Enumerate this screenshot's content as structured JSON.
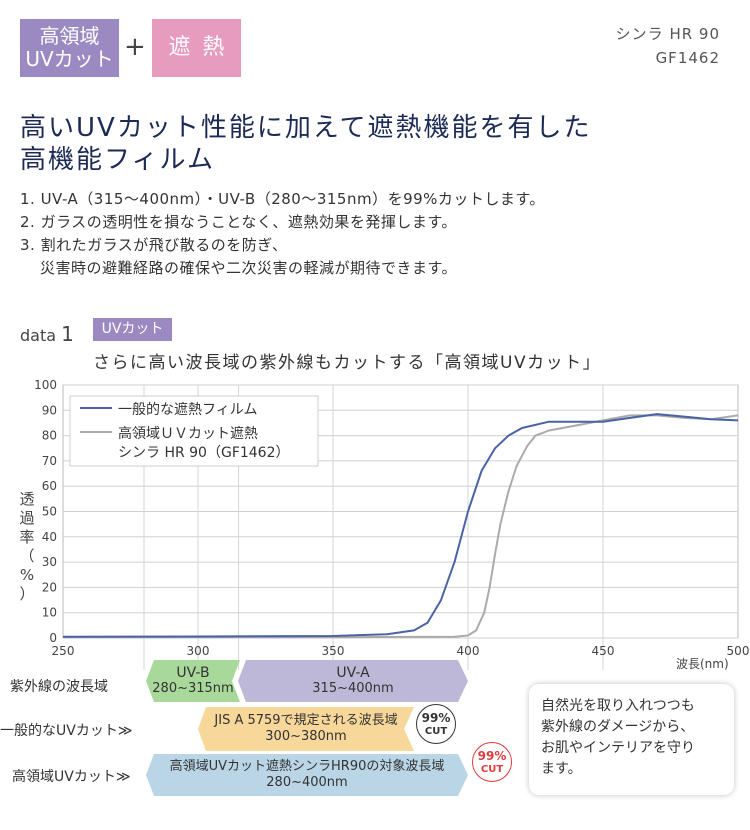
{
  "header": {
    "badge_uv_line1": "高領域",
    "badge_uv_line2": "UVカット",
    "plus": "+",
    "badge_heat": "遮熱",
    "product_name": "シンラ HR 90",
    "product_code": "GF1462"
  },
  "headline": {
    "line1": "高いUVカット性能に加えて遮熱機能を有した",
    "line2": "高機能フィルム"
  },
  "features": [
    {
      "text": "1. UV-A（315〜400nm）・UV-B（280〜315nm）を99%カットします。"
    },
    {
      "text": "2. ガラスの透明性を損なうことなく、遮熱効果を発揮します。"
    },
    {
      "text": "3. 割れたガラスが飛び散るのを防ぎ、",
      "cont": "災害時の避難経路の確保や二次災害の軽減が期待できます。"
    }
  ],
  "data_section": {
    "label": "data",
    "number": "1",
    "tag": "UVカット",
    "title": "さらに高い波長域の紫外線もカットする「高領域UVカット」"
  },
  "chart_data": {
    "type": "line",
    "title": "さらに高い波長域の紫外線もカットする「高領域UVカット」",
    "xlabel": "波長(nm)",
    "ylabel": "透過率（%）",
    "xlim": [
      250,
      500
    ],
    "ylim": [
      0,
      100
    ],
    "x_ticks": [
      250,
      300,
      350,
      400,
      450,
      500
    ],
    "y_ticks": [
      0,
      10,
      20,
      30,
      40,
      50,
      60,
      70,
      80,
      90,
      100
    ],
    "grid": true,
    "legend_position": "top-left",
    "series": [
      {
        "name": "一般的な遮熱フィルム",
        "color": "#4a63a6",
        "points": [
          [
            250,
            0.5
          ],
          [
            300,
            0.6
          ],
          [
            350,
            0.8
          ],
          [
            370,
            1.5
          ],
          [
            380,
            3
          ],
          [
            385,
            6
          ],
          [
            390,
            15
          ],
          [
            395,
            30
          ],
          [
            400,
            50
          ],
          [
            405,
            66
          ],
          [
            410,
            75
          ],
          [
            415,
            80
          ],
          [
            420,
            83
          ],
          [
            430,
            85.5
          ],
          [
            440,
            85.5
          ],
          [
            450,
            85.5
          ],
          [
            460,
            87
          ],
          [
            470,
            88.5
          ],
          [
            480,
            87.5
          ],
          [
            490,
            86.5
          ],
          [
            500,
            86
          ]
        ]
      },
      {
        "name": "高領域ＵＶカット遮熱\nシンラ HR 90（GF1462）",
        "name_line1": "高領域ＵＶカット遮熱",
        "name_line2": "シンラ HR 90（GF1462）",
        "color": "#aaaaaa",
        "points": [
          [
            250,
            0.3
          ],
          [
            350,
            0.3
          ],
          [
            395,
            0.5
          ],
          [
            400,
            1
          ],
          [
            403,
            3
          ],
          [
            406,
            10
          ],
          [
            408,
            20
          ],
          [
            410,
            33
          ],
          [
            412,
            45
          ],
          [
            415,
            58
          ],
          [
            418,
            68
          ],
          [
            422,
            76
          ],
          [
            425,
            80
          ],
          [
            430,
            82
          ],
          [
            440,
            84
          ],
          [
            450,
            86
          ],
          [
            460,
            88
          ],
          [
            470,
            88
          ],
          [
            480,
            87
          ],
          [
            490,
            86.5
          ],
          [
            500,
            88
          ]
        ]
      }
    ]
  },
  "bands": {
    "row1_label": "紫外線の波長域",
    "row2_label": "一般的なUVカット≫",
    "row3_label": "高領域UVカット≫",
    "uvb_name": "UV-B",
    "uvb_range": "280~315nm",
    "uva_name": "UV-A",
    "uva_range": "315~400nm",
    "jis_name": "JIS A 5759で規定される波長域",
    "jis_range": "300~380nm",
    "hr_name": "高領域UVカット遮熱シンラHR90の対象波長域",
    "hr_range": "280~400nm",
    "cut1_pct": "99%",
    "cut1_word": "CUT",
    "cut2_pct": "99%",
    "cut2_word": "CUT",
    "colors": {
      "uvb": "#a8d89a",
      "uva": "#bdb8d8",
      "jis": "#f7d79a",
      "hr": "#b9d5e6",
      "cut_red": "#e03a3a"
    }
  },
  "note": {
    "line1": "自然光を取り入れつつも",
    "line2": "紫外線のダメージから、",
    "line3": "お肌やインテリアを守り",
    "line4": "ます。"
  }
}
